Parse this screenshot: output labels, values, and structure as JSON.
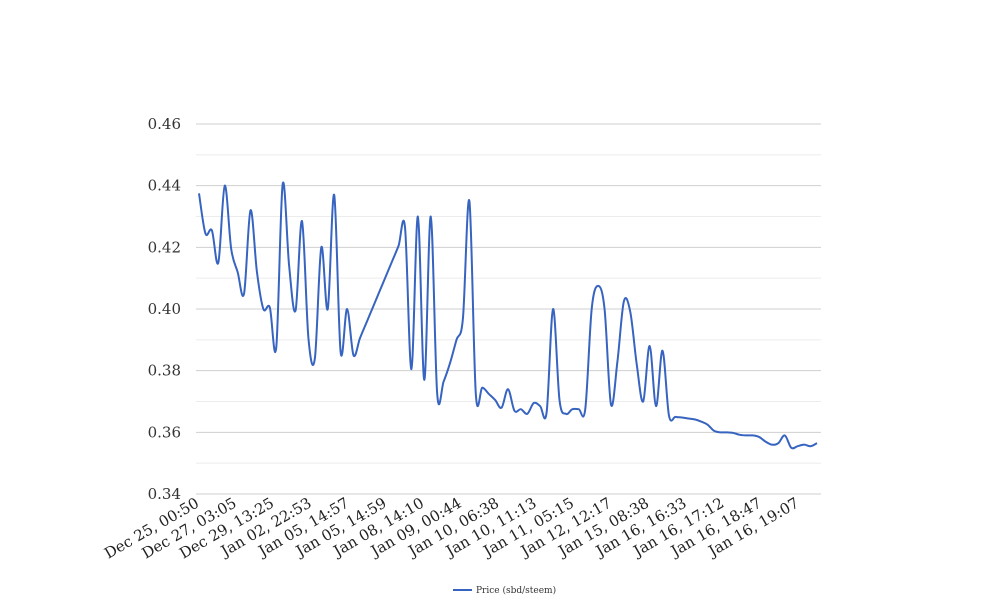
{
  "chart_data": {
    "type": "line",
    "title": "",
    "xlabel": "",
    "ylabel": "",
    "ylim": [
      0.34,
      0.46
    ],
    "yticks": [
      "0.46",
      "0.44",
      "0.42",
      "0.40",
      "0.38",
      "0.36",
      "0.34"
    ],
    "grid": "horizontal",
    "legend_placement": "bottom-center",
    "x_tick_labels": [
      "Dec 25, 00:50",
      "Dec 27, 03:05",
      "Dec 29, 13:25",
      "Jan 02, 22:53",
      "Jan 05, 14:57",
      "Jan 05, 14:59",
      "Jan 08, 14:10",
      "Jan 09, 00:44",
      "Jan 10, 06:38",
      "Jan 10, 11:13",
      "Jan 11, 05:15",
      "Jan 12, 12:17",
      "Jan 15, 08:38",
      "Jan 16, 16:33",
      "Jan 16, 17:12",
      "Jan 16, 18:47",
      "Jan 16, 19:07"
    ],
    "series": [
      {
        "name": "Price (sbd/steem)",
        "color": "#3764c0",
        "values": [
          0.4375,
          0.4245,
          0.4255,
          0.415,
          0.44,
          0.4195,
          0.412,
          0.405,
          0.432,
          0.412,
          0.4,
          0.4005,
          0.3875,
          0.4405,
          0.414,
          0.3995,
          0.4285,
          0.3905,
          0.384,
          0.42,
          0.4,
          0.437,
          0.386,
          0.4,
          0.385,
          0.3905,
          0.3955,
          0.4005,
          0.4055,
          0.4105,
          0.4155,
          0.4205,
          0.4265,
          0.3805,
          0.43,
          0.377,
          0.43,
          0.3725,
          0.3765,
          0.3825,
          0.39,
          0.397,
          0.435,
          0.3725,
          0.3745,
          0.3725,
          0.3705,
          0.368,
          0.374,
          0.367,
          0.3675,
          0.366,
          0.3695,
          0.3685,
          0.3665,
          0.4,
          0.3705,
          0.366,
          0.3675,
          0.3675,
          0.3675,
          0.4,
          0.4075,
          0.4,
          0.369,
          0.383,
          0.4025,
          0.399,
          0.382,
          0.37,
          0.388,
          0.3685,
          0.3865,
          0.3655,
          0.365,
          0.3648,
          0.3645,
          0.3642,
          0.3635,
          0.3625,
          0.3605,
          0.36,
          0.36,
          0.3598,
          0.3592,
          0.359,
          0.359,
          0.3585,
          0.357,
          0.356,
          0.3565,
          0.359,
          0.355,
          0.3555,
          0.356,
          0.3555,
          0.3565
        ]
      }
    ]
  }
}
